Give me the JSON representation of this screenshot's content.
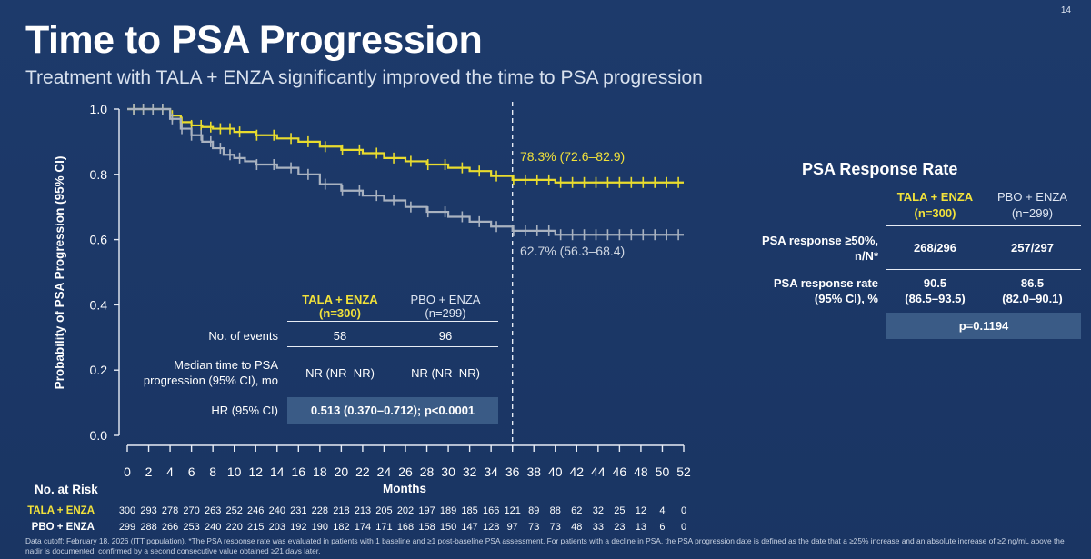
{
  "page": {
    "number": "14",
    "title": "Time to PSA Progression",
    "subtitle": "Treatment with TALA + ENZA significantly improved the time to PSA progression",
    "footnote": "Data cutoff: February 18, 2026 (ITT population). *The PSA response rate was evaluated in patients with 1 baseline and ≥1 post-baseline PSA assessment. For patients with a decline in PSA, the PSA progression date is defined as the date that a ≥25% increase and an absolute increase of ≥2 ng/mL above the nadir is documented, confirmed by a second consecutive value obtained ≥21 days later."
  },
  "colors": {
    "background": "#1b3766",
    "tala": "#e9dc2e",
    "pbo": "#a9b2c0",
    "table_highlight": "#3a5b86"
  },
  "chart_data": {
    "type": "line",
    "subtype": "kaplan-meier",
    "ylabel": "Probability of PSA Progression (95% CI)",
    "xlabel": "Months",
    "xlim": [
      0,
      52
    ],
    "ylim": [
      0,
      1.0
    ],
    "xticks": [
      "0",
      "2",
      "4",
      "6",
      "8",
      "10",
      "12",
      "14",
      "16",
      "18",
      "20",
      "22",
      "24",
      "26",
      "28",
      "30",
      "32",
      "34",
      "36",
      "38",
      "40",
      "42",
      "44",
      "46",
      "48",
      "50",
      "52"
    ],
    "yticks": [
      "0.0",
      "0.2",
      "0.4",
      "0.6",
      "0.8",
      "1.0"
    ],
    "reference_line_x": 36,
    "series": [
      {
        "name": "TALA + ENZA",
        "points": [
          [
            0,
            1.0
          ],
          [
            3.5,
            1.0
          ],
          [
            4,
            0.98
          ],
          [
            5,
            0.96
          ],
          [
            6,
            0.95
          ],
          [
            7,
            0.945
          ],
          [
            8,
            0.94
          ],
          [
            10,
            0.93
          ],
          [
            12,
            0.92
          ],
          [
            14,
            0.91
          ],
          [
            16,
            0.9
          ],
          [
            18,
            0.885
          ],
          [
            20,
            0.875
          ],
          [
            22,
            0.865
          ],
          [
            24,
            0.85
          ],
          [
            26,
            0.84
          ],
          [
            28,
            0.83
          ],
          [
            30,
            0.82
          ],
          [
            32,
            0.81
          ],
          [
            34,
            0.795
          ],
          [
            36,
            0.783
          ],
          [
            40,
            0.775
          ],
          [
            52,
            0.775
          ]
        ],
        "landmark": "78.3% (72.6–82.9)"
      },
      {
        "name": "PBO + ENZA",
        "points": [
          [
            0,
            1.0
          ],
          [
            3.5,
            1.0
          ],
          [
            4,
            0.97
          ],
          [
            5,
            0.94
          ],
          [
            6,
            0.92
          ],
          [
            7,
            0.9
          ],
          [
            8,
            0.88
          ],
          [
            9,
            0.86
          ],
          [
            10,
            0.85
          ],
          [
            11,
            0.84
          ],
          [
            12,
            0.83
          ],
          [
            14,
            0.82
          ],
          [
            16,
            0.8
          ],
          [
            18,
            0.77
          ],
          [
            20,
            0.75
          ],
          [
            22,
            0.735
          ],
          [
            24,
            0.72
          ],
          [
            26,
            0.7
          ],
          [
            28,
            0.685
          ],
          [
            30,
            0.67
          ],
          [
            32,
            0.655
          ],
          [
            34,
            0.64
          ],
          [
            36,
            0.627
          ],
          [
            40,
            0.615
          ],
          [
            52,
            0.615
          ]
        ],
        "landmark": "62.7% (56.3–68.4)"
      }
    ]
  },
  "at_risk": {
    "title": "No. at Risk",
    "rows": [
      {
        "label": "TALA + ENZA",
        "values": [
          "300",
          "293",
          "278",
          "270",
          "263",
          "252",
          "246",
          "240",
          "231",
          "228",
          "218",
          "213",
          "205",
          "202",
          "197",
          "189",
          "185",
          "166",
          "121",
          "89",
          "88",
          "62",
          "32",
          "25",
          "12",
          "4",
          "0"
        ]
      },
      {
        "label": "PBO + ENZA",
        "values": [
          "299",
          "288",
          "266",
          "253",
          "240",
          "220",
          "215",
          "203",
          "192",
          "190",
          "182",
          "174",
          "171",
          "168",
          "158",
          "150",
          "147",
          "128",
          "97",
          "73",
          "73",
          "48",
          "33",
          "23",
          "13",
          "6",
          "0"
        ]
      }
    ]
  },
  "inset_table": {
    "col1": {
      "name": "TALA + ENZA",
      "n": "(n=300)"
    },
    "col2": {
      "name": "PBO + ENZA",
      "n": "(n=299)"
    },
    "rows": [
      {
        "label": "No. of events",
        "v1": "58",
        "v2": "96"
      },
      {
        "label_1": "Median time to PSA",
        "label_2": "progression (95% CI), mo",
        "v1": "NR (NR–NR)",
        "v2": "NR (NR–NR)"
      },
      {
        "label": "HR (95% CI)",
        "value": "0.513 (0.370–0.712); p<0.0001"
      }
    ]
  },
  "response": {
    "title": "PSA Response Rate",
    "col1": {
      "name": "TALA + ENZA",
      "n": "(n=300)"
    },
    "col2": {
      "name": "PBO + ENZA",
      "n": "(n=299)"
    },
    "row1": {
      "label_1": "PSA response ≥50%,",
      "label_2": "n/N*",
      "v1": "268/296",
      "v2": "257/297"
    },
    "row2": {
      "label_1": "PSA response rate",
      "label_2": "(95% CI), %",
      "v1_1": "90.5",
      "v1_2": "(86.5–93.5)",
      "v2_1": "86.5",
      "v2_2": "(82.0–90.1)"
    },
    "p": "p=0.1194"
  }
}
